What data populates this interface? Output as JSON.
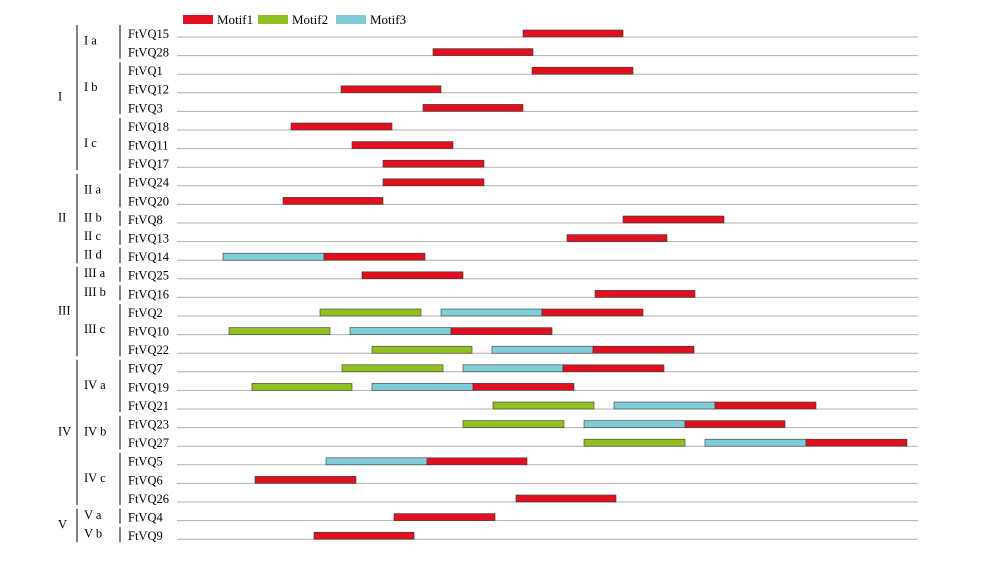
{
  "chart_data": {
    "type": "bar",
    "subtype": "horizontal-interval",
    "title": "",
    "xlabel": "",
    "ylabel": "",
    "grid": true,
    "legend_position": "top-left",
    "xlim": [
      0,
      745
    ],
    "motifs": [
      {
        "name": "Motif1",
        "color": "#e0101e"
      },
      {
        "name": "Motif2",
        "color": "#92c020"
      },
      {
        "name": "Motif3",
        "color": "#80ccd8"
      }
    ],
    "groups": [
      {
        "name": "I",
        "subgroups": [
          {
            "name": "I a",
            "genes": [
              "FtVQ15",
              "FtVQ28"
            ]
          },
          {
            "name": "I b",
            "genes": [
              "FtVQ1",
              "FtVQ12",
              "FtVQ3"
            ]
          },
          {
            "name": "I c",
            "genes": [
              "FtVQ18",
              "FtVQ11",
              "FtVQ17"
            ]
          }
        ]
      },
      {
        "name": "II",
        "subgroups": [
          {
            "name": "II a",
            "genes": [
              "FtVQ24",
              "FtVQ20"
            ]
          },
          {
            "name": "II b",
            "genes": [
              "FtVQ8"
            ]
          },
          {
            "name": "II c",
            "genes": [
              "FtVQ13"
            ]
          },
          {
            "name": "II d",
            "genes": [
              "FtVQ14"
            ]
          }
        ]
      },
      {
        "name": "III",
        "subgroups": [
          {
            "name": "III a",
            "genes": [
              "FtVQ25"
            ]
          },
          {
            "name": "III b",
            "genes": [
              "FtVQ16"
            ]
          },
          {
            "name": "III c",
            "genes": [
              "FtVQ2",
              "FtVQ10",
              "FtVQ22"
            ]
          }
        ]
      },
      {
        "name": "IV",
        "subgroups": [
          {
            "name": "IV a",
            "genes": [
              "FtVQ7",
              "FtVQ19",
              "FtVQ21"
            ]
          },
          {
            "name": "IV b",
            "genes": [
              "FtVQ23",
              "FtVQ27"
            ]
          },
          {
            "name": "IV c",
            "genes": [
              "FtVQ5",
              "FtVQ6",
              "FtVQ26"
            ]
          }
        ]
      },
      {
        "name": "V",
        "subgroups": [
          {
            "name": "V a",
            "genes": [
              "FtVQ4"
            ]
          },
          {
            "name": "V b",
            "genes": [
              "FtVQ9"
            ]
          }
        ]
      }
    ],
    "rows": [
      {
        "gene": "FtVQ15",
        "segments": [
          {
            "motif": "Motif1",
            "start": 338,
            "end": 438
          }
        ]
      },
      {
        "gene": "FtVQ28",
        "segments": [
          {
            "motif": "Motif1",
            "start": 248,
            "end": 348
          }
        ]
      },
      {
        "gene": "FtVQ1",
        "segments": [
          {
            "motif": "Motif1",
            "start": 347,
            "end": 448
          }
        ]
      },
      {
        "gene": "FtVQ12",
        "segments": [
          {
            "motif": "Motif1",
            "start": 156,
            "end": 256
          }
        ]
      },
      {
        "gene": "FtVQ3",
        "segments": [
          {
            "motif": "Motif1",
            "start": 238,
            "end": 338
          }
        ]
      },
      {
        "gene": "FtVQ18",
        "segments": [
          {
            "motif": "Motif1",
            "start": 106,
            "end": 207
          }
        ]
      },
      {
        "gene": "FtVQ11",
        "segments": [
          {
            "motif": "Motif1",
            "start": 167,
            "end": 268
          }
        ]
      },
      {
        "gene": "FtVQ17",
        "segments": [
          {
            "motif": "Motif1",
            "start": 198,
            "end": 299
          }
        ]
      },
      {
        "gene": "FtVQ24",
        "segments": [
          {
            "motif": "Motif1",
            "start": 198,
            "end": 299
          }
        ]
      },
      {
        "gene": "FtVQ20",
        "segments": [
          {
            "motif": "Motif1",
            "start": 98,
            "end": 198
          }
        ]
      },
      {
        "gene": "FtVQ8",
        "segments": [
          {
            "motif": "Motif1",
            "start": 438,
            "end": 539
          }
        ]
      },
      {
        "gene": "FtVQ13",
        "segments": [
          {
            "motif": "Motif1",
            "start": 382,
            "end": 482
          }
        ]
      },
      {
        "gene": "FtVQ14",
        "segments": [
          {
            "motif": "Motif3",
            "start": 38,
            "end": 139
          },
          {
            "motif": "Motif1",
            "start": 139,
            "end": 240
          }
        ]
      },
      {
        "gene": "FtVQ25",
        "segments": [
          {
            "motif": "Motif1",
            "start": 177,
            "end": 278
          }
        ]
      },
      {
        "gene": "FtVQ16",
        "segments": [
          {
            "motif": "Motif1",
            "start": 410,
            "end": 510
          }
        ]
      },
      {
        "gene": "FtVQ2",
        "segments": [
          {
            "motif": "Motif2",
            "start": 135,
            "end": 236
          },
          {
            "motif": "Motif3",
            "start": 256,
            "end": 357
          },
          {
            "motif": "Motif1",
            "start": 357,
            "end": 458
          }
        ]
      },
      {
        "gene": "FtVQ10",
        "segments": [
          {
            "motif": "Motif2",
            "start": 44,
            "end": 145
          },
          {
            "motif": "Motif3",
            "start": 165,
            "end": 266
          },
          {
            "motif": "Motif1",
            "start": 266,
            "end": 367
          }
        ]
      },
      {
        "gene": "FtVQ22",
        "segments": [
          {
            "motif": "Motif2",
            "start": 187,
            "end": 287
          },
          {
            "motif": "Motif3",
            "start": 307,
            "end": 408
          },
          {
            "motif": "Motif1",
            "start": 408,
            "end": 509
          }
        ]
      },
      {
        "gene": "FtVQ7",
        "segments": [
          {
            "motif": "Motif2",
            "start": 157,
            "end": 258
          },
          {
            "motif": "Motif3",
            "start": 278,
            "end": 378
          },
          {
            "motif": "Motif1",
            "start": 378,
            "end": 479
          }
        ]
      },
      {
        "gene": "FtVQ19",
        "segments": [
          {
            "motif": "Motif2",
            "start": 67,
            "end": 167
          },
          {
            "motif": "Motif3",
            "start": 187,
            "end": 288
          },
          {
            "motif": "Motif1",
            "start": 288,
            "end": 389
          }
        ]
      },
      {
        "gene": "FtVQ21",
        "segments": [
          {
            "motif": "Motif2",
            "start": 308,
            "end": 409
          },
          {
            "motif": "Motif3",
            "start": 429,
            "end": 530
          },
          {
            "motif": "Motif1",
            "start": 530,
            "end": 631
          }
        ]
      },
      {
        "gene": "FtVQ23",
        "segments": [
          {
            "motif": "Motif2",
            "start": 278,
            "end": 379
          },
          {
            "motif": "Motif3",
            "start": 399,
            "end": 500
          },
          {
            "motif": "Motif1",
            "start": 500,
            "end": 600
          }
        ]
      },
      {
        "gene": "FtVQ27",
        "segments": [
          {
            "motif": "Motif2",
            "start": 399,
            "end": 500
          },
          {
            "motif": "Motif3",
            "start": 520,
            "end": 621
          },
          {
            "motif": "Motif1",
            "start": 621,
            "end": 722
          }
        ]
      },
      {
        "gene": "FtVQ5",
        "segments": [
          {
            "motif": "Motif3",
            "start": 141,
            "end": 242
          },
          {
            "motif": "Motif1",
            "start": 242,
            "end": 342
          }
        ]
      },
      {
        "gene": "FtVQ6",
        "segments": [
          {
            "motif": "Motif1",
            "start": 70,
            "end": 171
          }
        ]
      },
      {
        "gene": "FtVQ26",
        "segments": [
          {
            "motif": "Motif1",
            "start": 331,
            "end": 431
          }
        ]
      },
      {
        "gene": "FtVQ4",
        "segments": [
          {
            "motif": "Motif1",
            "start": 209,
            "end": 310
          }
        ]
      },
      {
        "gene": "FtVQ9",
        "segments": [
          {
            "motif": "Motif1",
            "start": 129,
            "end": 229
          }
        ]
      }
    ]
  }
}
